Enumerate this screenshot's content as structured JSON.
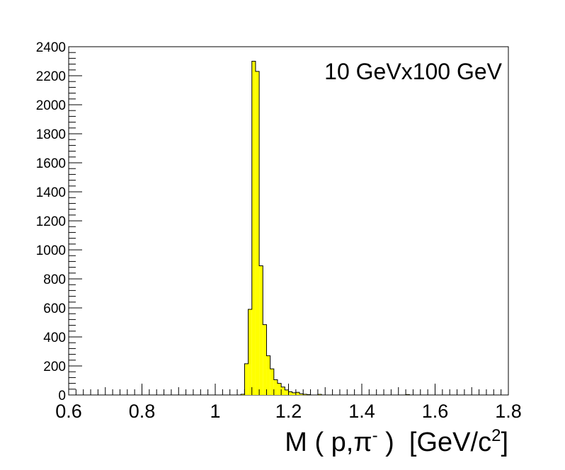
{
  "chart_data": {
    "type": "bar",
    "annotation": "10 GeVx100 GeV",
    "xlabel": {
      "main": "M ( p,π",
      "sup_pi": "-",
      "mid": " )  [GeV/c",
      "sup_c": "2",
      "end": "]"
    },
    "ylabel": "",
    "xlim": [
      0.6,
      1.8
    ],
    "ylim": [
      0,
      2400
    ],
    "bin_width": 0.01,
    "x_ticks": [
      "0.6",
      "0.8",
      "1",
      "1.2",
      "1.4",
      "1.6",
      "1.8"
    ],
    "x_tick_values": [
      0.6,
      0.8,
      1.0,
      1.2,
      1.4,
      1.6,
      1.8
    ],
    "y_ticks": [
      "0",
      "200",
      "400",
      "600",
      "800",
      "1000",
      "1200",
      "1400",
      "1600",
      "1800",
      "2000",
      "2200",
      "2400"
    ],
    "y_tick_values": [
      0,
      200,
      400,
      600,
      800,
      1000,
      1200,
      1400,
      1600,
      1800,
      2000,
      2200,
      2400
    ],
    "fill_color": "#ffff00",
    "line_color": "#000000",
    "bins": [
      {
        "x": 1.07,
        "y": 5
      },
      {
        "x": 1.08,
        "y": 215
      },
      {
        "x": 1.09,
        "y": 590
      },
      {
        "x": 1.1,
        "y": 2300
      },
      {
        "x": 1.11,
        "y": 2230
      },
      {
        "x": 1.12,
        "y": 890
      },
      {
        "x": 1.13,
        "y": 485
      },
      {
        "x": 1.14,
        "y": 270
      },
      {
        "x": 1.15,
        "y": 180
      },
      {
        "x": 1.16,
        "y": 105
      },
      {
        "x": 1.17,
        "y": 80
      },
      {
        "x": 1.18,
        "y": 55
      },
      {
        "x": 1.19,
        "y": 35
      },
      {
        "x": 1.2,
        "y": 22
      },
      {
        "x": 1.21,
        "y": 15
      },
      {
        "x": 1.22,
        "y": 18
      },
      {
        "x": 1.23,
        "y": 8
      },
      {
        "x": 1.24,
        "y": 5
      },
      {
        "x": 1.25,
        "y": 3
      },
      {
        "x": 1.28,
        "y": 4
      },
      {
        "x": 1.52,
        "y": 3
      }
    ]
  }
}
